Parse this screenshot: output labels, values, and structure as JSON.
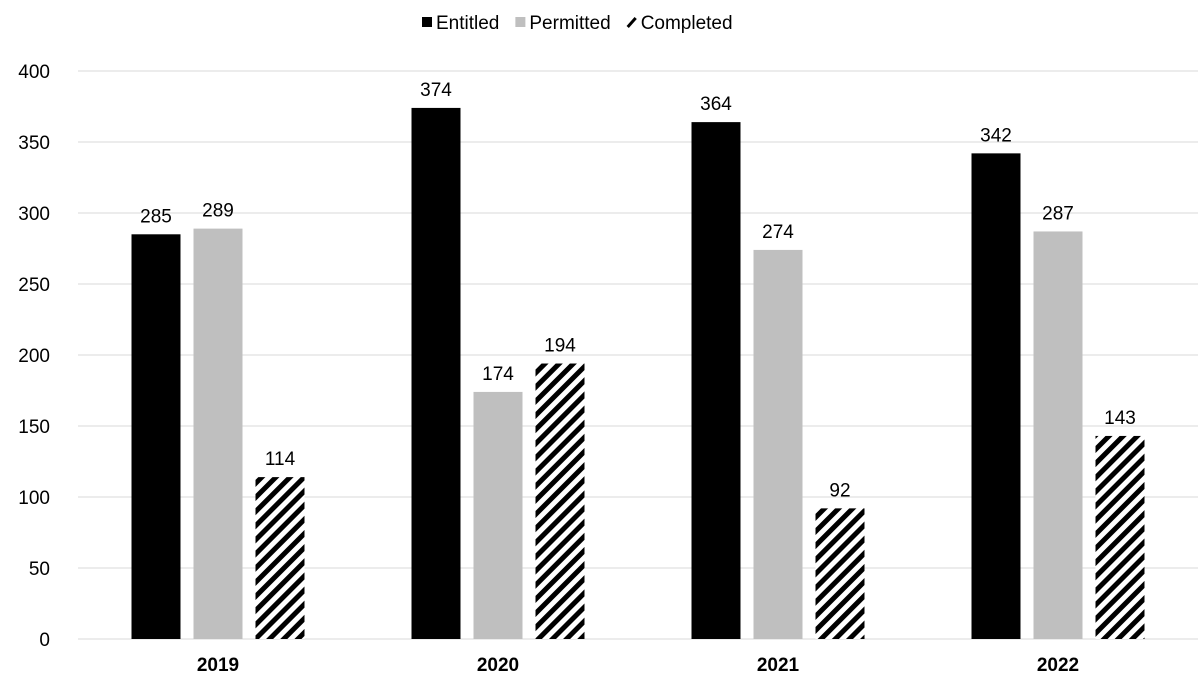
{
  "chart_data": {
    "type": "bar",
    "title": "",
    "xlabel": "",
    "ylabel": "",
    "categories": [
      "2019",
      "2020",
      "2021",
      "2022"
    ],
    "series": [
      {
        "name": "Entitled",
        "values": [
          285,
          374,
          364,
          342
        ],
        "color": "#000000",
        "pattern": "solid"
      },
      {
        "name": "Permitted",
        "values": [
          289,
          174,
          274,
          287
        ],
        "color": "#bfbfbf",
        "pattern": "solid"
      },
      {
        "name": "Completed",
        "values": [
          114,
          194,
          92,
          143
        ],
        "color": "#000000",
        "pattern": "diagonal-stripes"
      }
    ],
    "ylim": [
      0,
      400
    ],
    "yticks": [
      0,
      50,
      100,
      150,
      200,
      250,
      300,
      350,
      400
    ],
    "grid": true,
    "legend_position": "top-center",
    "data_labels": true
  }
}
